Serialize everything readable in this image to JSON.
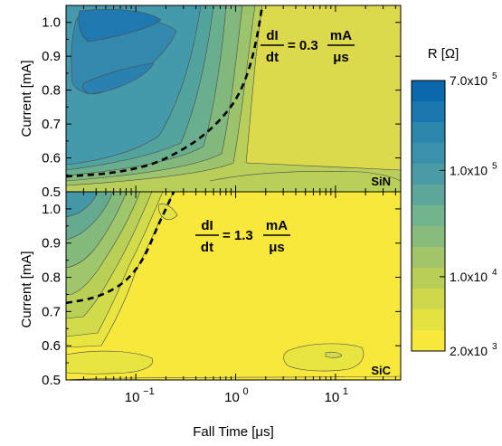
{
  "figure": {
    "x_axis_label": "Fall Time [μs]",
    "y_axis_label": "Current [mA]",
    "x_ticks": [
      {
        "value": 0.1,
        "base": "10",
        "exp": "−1"
      },
      {
        "value": 1,
        "base": "10",
        "exp": "0"
      },
      {
        "value": 10,
        "base": "10",
        "exp": "1"
      }
    ],
    "y_ticks": [
      "0.5",
      "0.6",
      "0.7",
      "0.8",
      "0.9",
      "1.0"
    ]
  },
  "colorbar": {
    "title": "R [Ω]",
    "labels": [
      {
        "value": 700000.0,
        "mantissa": "7.0x10",
        "exp": "5"
      },
      {
        "value": 100000.0,
        "mantissa": "1.0x10",
        "exp": "5"
      },
      {
        "value": 10000.0,
        "mantissa": "1.0x10",
        "exp": "4"
      },
      {
        "value": 2000.0,
        "mantissa": "2.0x10",
        "exp": "3"
      }
    ],
    "colors": [
      "#0a68ab",
      "#1a78ae",
      "#2c85ac",
      "#3a91aa",
      "#4a9ba5",
      "#5ca79a",
      "#72b48d",
      "#89bc7c",
      "#a2c56a",
      "#b8ce57",
      "#cfd84a",
      "#e4e240",
      "#f7e83b"
    ]
  },
  "chart_data": [
    {
      "type": "heatmap",
      "panel": "upper",
      "material_label": "SiN",
      "annotation": {
        "numerator": "dI",
        "denominator": "dt",
        "equals": "= 0.3",
        "unit_numerator": "mA",
        "unit_denominator": "μs"
      },
      "x_label": "Fall Time [μs]",
      "y_label": "Current [mA]",
      "x_scale": "log",
      "xlim": [
        0.02,
        45
      ],
      "ylim": [
        0.5,
        1.05
      ],
      "dashed_curve": [
        [
          0.02,
          0.545
        ],
        [
          0.06,
          0.555
        ],
        [
          0.15,
          0.58
        ],
        [
          0.3,
          0.625
        ],
        [
          0.5,
          0.67
        ],
        [
          0.8,
          0.73
        ],
        [
          1.1,
          0.79
        ],
        [
          1.4,
          0.87
        ],
        [
          1.65,
          0.96
        ],
        [
          1.85,
          1.05
        ]
      ]
    },
    {
      "type": "heatmap",
      "panel": "lower",
      "material_label": "SiC",
      "annotation": {
        "numerator": "dI",
        "denominator": "dt",
        "equals": "= 1.3",
        "unit_numerator": "mA",
        "unit_denominator": "μs"
      },
      "x_label": "Fall Time [μs]",
      "y_label": "Current [mA]",
      "x_scale": "log",
      "xlim": [
        0.02,
        45
      ],
      "ylim": [
        0.5,
        1.05
      ],
      "dashed_curve": [
        [
          0.02,
          0.725
        ],
        [
          0.04,
          0.74
        ],
        [
          0.07,
          0.775
        ],
        [
          0.1,
          0.82
        ],
        [
          0.13,
          0.875
        ],
        [
          0.16,
          0.94
        ],
        [
          0.2,
          1.0
        ],
        [
          0.24,
          1.05
        ]
      ]
    }
  ]
}
